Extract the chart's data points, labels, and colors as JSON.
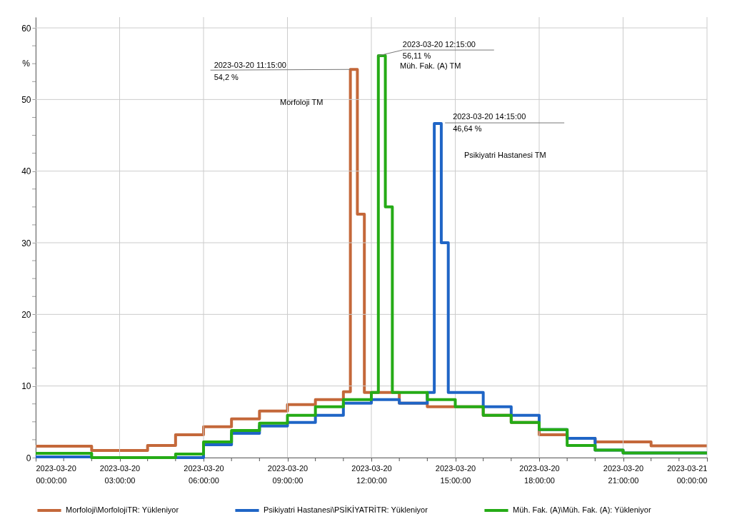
{
  "chart_data": {
    "type": "step",
    "legend": "bottom",
    "grid": true,
    "xlim": [
      "2023-03-20T00:00",
      "2023-03-21T00:00"
    ],
    "xticks": [
      {
        "value": "2023-03-20T00:00",
        "label": "2023-03-20 00:00:00"
      },
      {
        "value": "2023-03-20T01:00",
        "label": null
      },
      {
        "value": "2023-03-20T02:00",
        "label": null
      },
      {
        "value": "2023-03-20T03:00",
        "label": "2023-03-20 03:00:00"
      },
      {
        "value": "2023-03-20T04:00",
        "label": null
      },
      {
        "value": "2023-03-20T05:00",
        "label": null
      },
      {
        "value": "2023-03-20T06:00",
        "label": "2023-03-20 06:00:00"
      },
      {
        "value": "2023-03-20T07:00",
        "label": null
      },
      {
        "value": "2023-03-20T08:00",
        "label": null
      },
      {
        "value": "2023-03-20T09:00",
        "label": "2023-03-20 09:00:00"
      },
      {
        "value": "2023-03-20T10:00",
        "label": null
      },
      {
        "value": "2023-03-20T11:00",
        "label": null
      },
      {
        "value": "2023-03-20T12:00",
        "label": "2023-03-20 12:00:00"
      },
      {
        "value": "2023-03-20T13:00",
        "label": null
      },
      {
        "value": "2023-03-20T14:00",
        "label": null
      },
      {
        "value": "2023-03-20T15:00",
        "label": "2023-03-20 15:00:00"
      },
      {
        "value": "2023-03-20T16:00",
        "label": null
      },
      {
        "value": "2023-03-20T17:00",
        "label": null
      },
      {
        "value": "2023-03-20T18:00",
        "label": "2023-03-20 18:00:00"
      },
      {
        "value": "2023-03-20T19:00",
        "label": null
      },
      {
        "value": "2023-03-20T20:00",
        "label": null
      },
      {
        "value": "2023-03-20T21:00",
        "label": "2023-03-20 21:00:00"
      },
      {
        "value": "2023-03-20T22:00",
        "label": null
      },
      {
        "value": "2023-03-20T23:00",
        "label": null
      },
      {
        "value": "2023-03-21T00:00",
        "label": "2023-03-21 00:00:00"
      }
    ],
    "ylim": [
      0,
      61.5
    ],
    "yticks": [
      0,
      {
        "value": 2.5,
        "label": null
      },
      {
        "value": 5,
        "label": null
      },
      {
        "value": 7.5,
        "label": null
      },
      10,
      {
        "value": 12.5,
        "label": null
      },
      {
        "value": 15,
        "label": null
      },
      {
        "value": 17.5,
        "label": null
      },
      20,
      {
        "value": 22.5,
        "label": null
      },
      {
        "value": 25,
        "label": null
      },
      {
        "value": 27.5,
        "label": null
      },
      30,
      {
        "value": 32.5,
        "label": null
      },
      {
        "value": 35,
        "label": null
      },
      {
        "value": 37.5,
        "label": null
      },
      40,
      {
        "value": 42.5,
        "label": null
      },
      {
        "value": 45,
        "label": null
      },
      {
        "value": 47.5,
        "label": null
      },
      50,
      {
        "value": 52.5,
        "label": null
      },
      {
        "value": 55,
        "label": null
      },
      {
        "value": 57.5,
        "label": null
      },
      60
    ],
    "ylabel": "%",
    "series": [
      {
        "name": "Morfoloji\\MorfolojiTR: Yükleniyor",
        "color": "#c4683a",
        "x": [
          "2023-03-20T00:00",
          "2023-03-20T02:00",
          "2023-03-20T04:00",
          "2023-03-20T05:00",
          "2023-03-20T06:00",
          "2023-03-20T07:00",
          "2023-03-20T08:00",
          "2023-03-20T09:00",
          "2023-03-20T10:00",
          "2023-03-20T11:00",
          "2023-03-20T11:15",
          "2023-03-20T11:30",
          "2023-03-20T11:45",
          "2023-03-20T13:00",
          "2023-03-20T14:00",
          "2023-03-20T15:00",
          "2023-03-20T16:00",
          "2023-03-20T17:00",
          "2023-03-20T18:00",
          "2023-03-20T19:00",
          "2023-03-20T20:00",
          "2023-03-20T22:00",
          "2023-03-21T00:00"
        ],
        "values": [
          1.6,
          1.0,
          1.7,
          3.2,
          4.3,
          5.4,
          6.5,
          7.4,
          8.1,
          9.2,
          54.2,
          34,
          9.1,
          7.6,
          7.1,
          7.1,
          5.9,
          4.9,
          3.2,
          2.7,
          2.2,
          1.65,
          1.65
        ]
      },
      {
        "name": "Psikiyatri Hastanesi\\PSİKİYATRİTR: Yükleniyor",
        "color": "#1f65c6",
        "x": [
          "2023-03-20T00:00",
          "2023-03-20T02:00",
          "2023-03-20T06:00",
          "2023-03-20T07:00",
          "2023-03-20T08:00",
          "2023-03-20T09:00",
          "2023-03-20T10:00",
          "2023-03-20T11:00",
          "2023-03-20T12:00",
          "2023-03-20T13:00",
          "2023-03-20T14:00",
          "2023-03-20T14:15",
          "2023-03-20T14:30",
          "2023-03-20T14:45",
          "2023-03-20T16:00",
          "2023-03-20T17:00",
          "2023-03-20T18:00",
          "2023-03-20T19:00",
          "2023-03-20T20:00",
          "2023-03-20T21:00",
          "2023-03-21T00:00"
        ],
        "values": [
          0.1,
          0,
          1.8,
          3.4,
          4.4,
          4.9,
          5.9,
          7.6,
          8.1,
          7.6,
          9.1,
          46.64,
          30,
          9.1,
          7.1,
          5.9,
          3.9,
          2.7,
          1.05,
          0.65,
          0.65
        ]
      },
      {
        "name": "Müh. Fak. (A)\\Müh. Fak. (A): Yükleniyor",
        "color": "#25ab16",
        "x": [
          "2023-03-20T00:00",
          "2023-03-20T02:00",
          "2023-03-20T05:00",
          "2023-03-20T06:00",
          "2023-03-20T07:00",
          "2023-03-20T08:00",
          "2023-03-20T09:00",
          "2023-03-20T10:00",
          "2023-03-20T11:00",
          "2023-03-20T12:00",
          "2023-03-20T12:15",
          "2023-03-20T12:30",
          "2023-03-20T12:45",
          "2023-03-20T14:00",
          "2023-03-20T15:00",
          "2023-03-20T16:00",
          "2023-03-20T17:00",
          "2023-03-20T18:00",
          "2023-03-20T19:00",
          "2023-03-20T20:00",
          "2023-03-20T21:00",
          "2023-03-21T00:00"
        ],
        "values": [
          0.6,
          0,
          0.5,
          2.2,
          3.8,
          4.8,
          5.9,
          7.1,
          8.1,
          9.1,
          56.11,
          35,
          9.1,
          8.1,
          7.1,
          5.9,
          4.9,
          3.9,
          1.7,
          1.05,
          0.65,
          0.65
        ]
      }
    ],
    "annotations": [
      {
        "text": "2023-03-20 11:15:00\n54,2 %",
        "x": "2023-03-20T11:15",
        "y": 54.2
      },
      "Morfoloji TM",
      {
        "text": "2023-03-20 12:15:00\n56,11 %",
        "x": "2023-03-20T12:15",
        "y": 56.11
      },
      "Müh. Fak. (A) TM",
      {
        "text": "2023-03-20 14:15:00\n46,64 %",
        "x": "2023-03-20T14:15",
        "y": 46.64
      },
      "Psikiyatri Hastanesi TM"
    ]
  }
}
